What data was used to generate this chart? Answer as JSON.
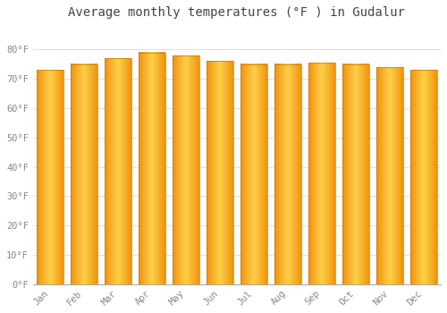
{
  "months": [
    "Jan",
    "Feb",
    "Mar",
    "Apr",
    "May",
    "Jun",
    "Jul",
    "Aug",
    "Sep",
    "Oct",
    "Nov",
    "Dec"
  ],
  "values": [
    73,
    75,
    77,
    79,
    78,
    76,
    75,
    75,
    75.5,
    75,
    74,
    73
  ],
  "bar_color_center": "#FFD04A",
  "bar_color_edge": "#F0920A",
  "bar_edge_color": "#C87800",
  "title": "Average monthly temperatures (°F ) in Gudalur",
  "ylim": [
    0,
    88
  ],
  "yticks": [
    0,
    10,
    20,
    30,
    40,
    50,
    60,
    70,
    80
  ],
  "ytick_labels": [
    "0°F",
    "10°F",
    "20°F",
    "30°F",
    "40°F",
    "50°F",
    "60°F",
    "70°F",
    "80°F"
  ],
  "background_color": "#FFFFFF",
  "grid_color": "#DDDDDD",
  "title_fontsize": 10,
  "tick_fontsize": 7.5,
  "tick_color": "#888888"
}
